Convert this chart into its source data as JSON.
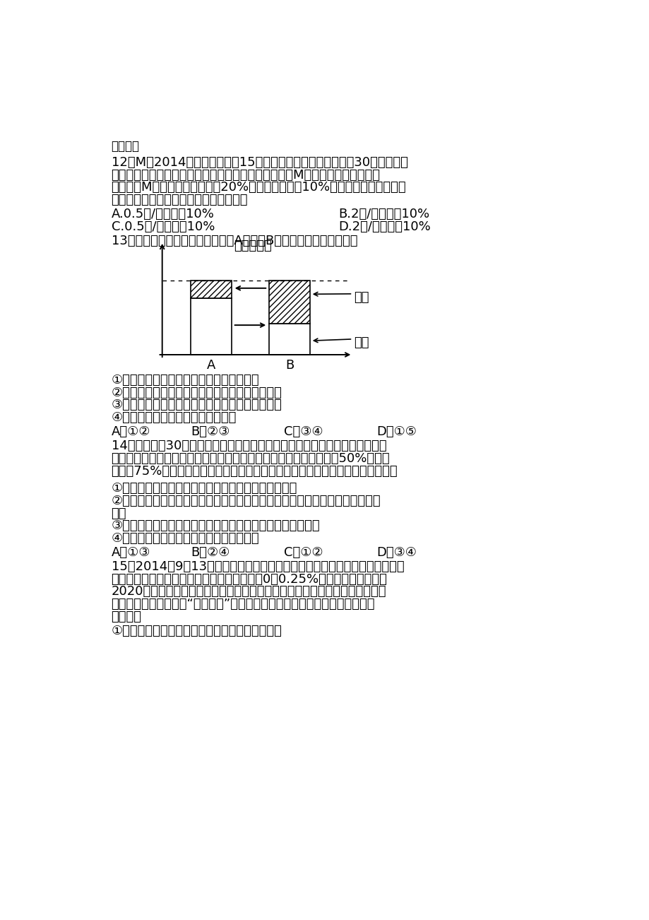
{
  "bg_color": "#ffffff",
  "text_color": "#000000",
  "title": "政治试题",
  "q12_line1": "12．M国2014年货币供应量为15万亿元，同期商品价格总额为30万亿元。假",
  "q12_line2": "设该国货币供需均衡且货币价值稳定，那么，可推算出M国当年货币流通速度为",
  "q12_line3": "＿＿，若M国货币流通速度加快20%，国内生产扩大10%，在其他条件不变的情",
  "q12_line4": "况下，该国物价水平的变化大致是（　）",
  "q12_opt_A": "A.0.5次/年　下降10%",
  "q12_opt_B": "B.2次/年　下降10%",
  "q12_opt_C": "C.0.5次/年　上升10%",
  "q12_opt_D": "D.2次/年　上升10%",
  "q13_text": "13．读下图，如果一企业要实现今A状态向B状态的转变，需要（　）",
  "chart_title": "稳固的价格",
  "chart_label_profit": "利润",
  "chart_label_cost": "成本",
  "chart_label_A": "A",
  "chart_label_B": "B",
  "q13_opt1": "①　企业增加研发投入，不停地开发新产品",
  "q13_opt2": "②缩短企业生产的个别劳动时间，提高劳动生产率",
  "q13_opt3": "③企业加强科技创新和科学管理，提高资源利用率",
  "q13_opt4": "④加大投资规模，加强企业间的兼并",
  "q13_ch_A": "A．①②",
  "q13_ch_B": "B．②③",
  "q13_ch_C": "C．③④",
  "q13_ch_D": "D．①⑤",
  "q14_line1": "14．改革开放30多年来，我国非公有制经济获得了快速发展，已经形成数量最",
  "q14_line2": "多、比例最大的企业群体，其投资已超过全社会固定资产投资比重的50%，提供",
  "q14_line3": "了城镇75%以上的就业岗位，对国家财政收入的贡献份额不断加大。这说明（　）",
  "q14_opt1": "①必须毫不动摇地鼓励、支持、引导非公有制经济发展",
  "q14_opt2": "②公有制为主体、多种所有制经济共同发展的基本经济制度有利于提高人民生活",
  "q14_opt2b": "水平",
  "q14_opt3": "③公有制经济和非公有制经济在国民经济中的地位实现了平等",
  "q14_opt4": "④非公有制经济在国民经济中发挥主导作用",
  "q14_ch_A": "A．①③",
  "q14_ch_B": "B．②④",
  "q14_ch_C": "C．①②",
  "q14_ch_D": "D．③④",
  "q15_line1": "15．2014年9月13日，美国联邦储备委员会宣布了第三轮量化宽松货币政策，",
  "q15_line2": "以进一步支持经济复苏和劳工市场，并计划圇0～0.25%的低利率至少维持至",
  "q15_line3": "2020年。美联储继续维持其宽松的货币政策将大大增加全球经济失衡的压力，",
  "q15_line4": "使新兴市场国家都面临“热錢压境”的风险。美国量化宽松政策对全球的影响说",
  "q15_line5": "明（　）",
  "q15_opt1": "①经济全球化给新兴市场国家带来的是机遇和挑战"
}
